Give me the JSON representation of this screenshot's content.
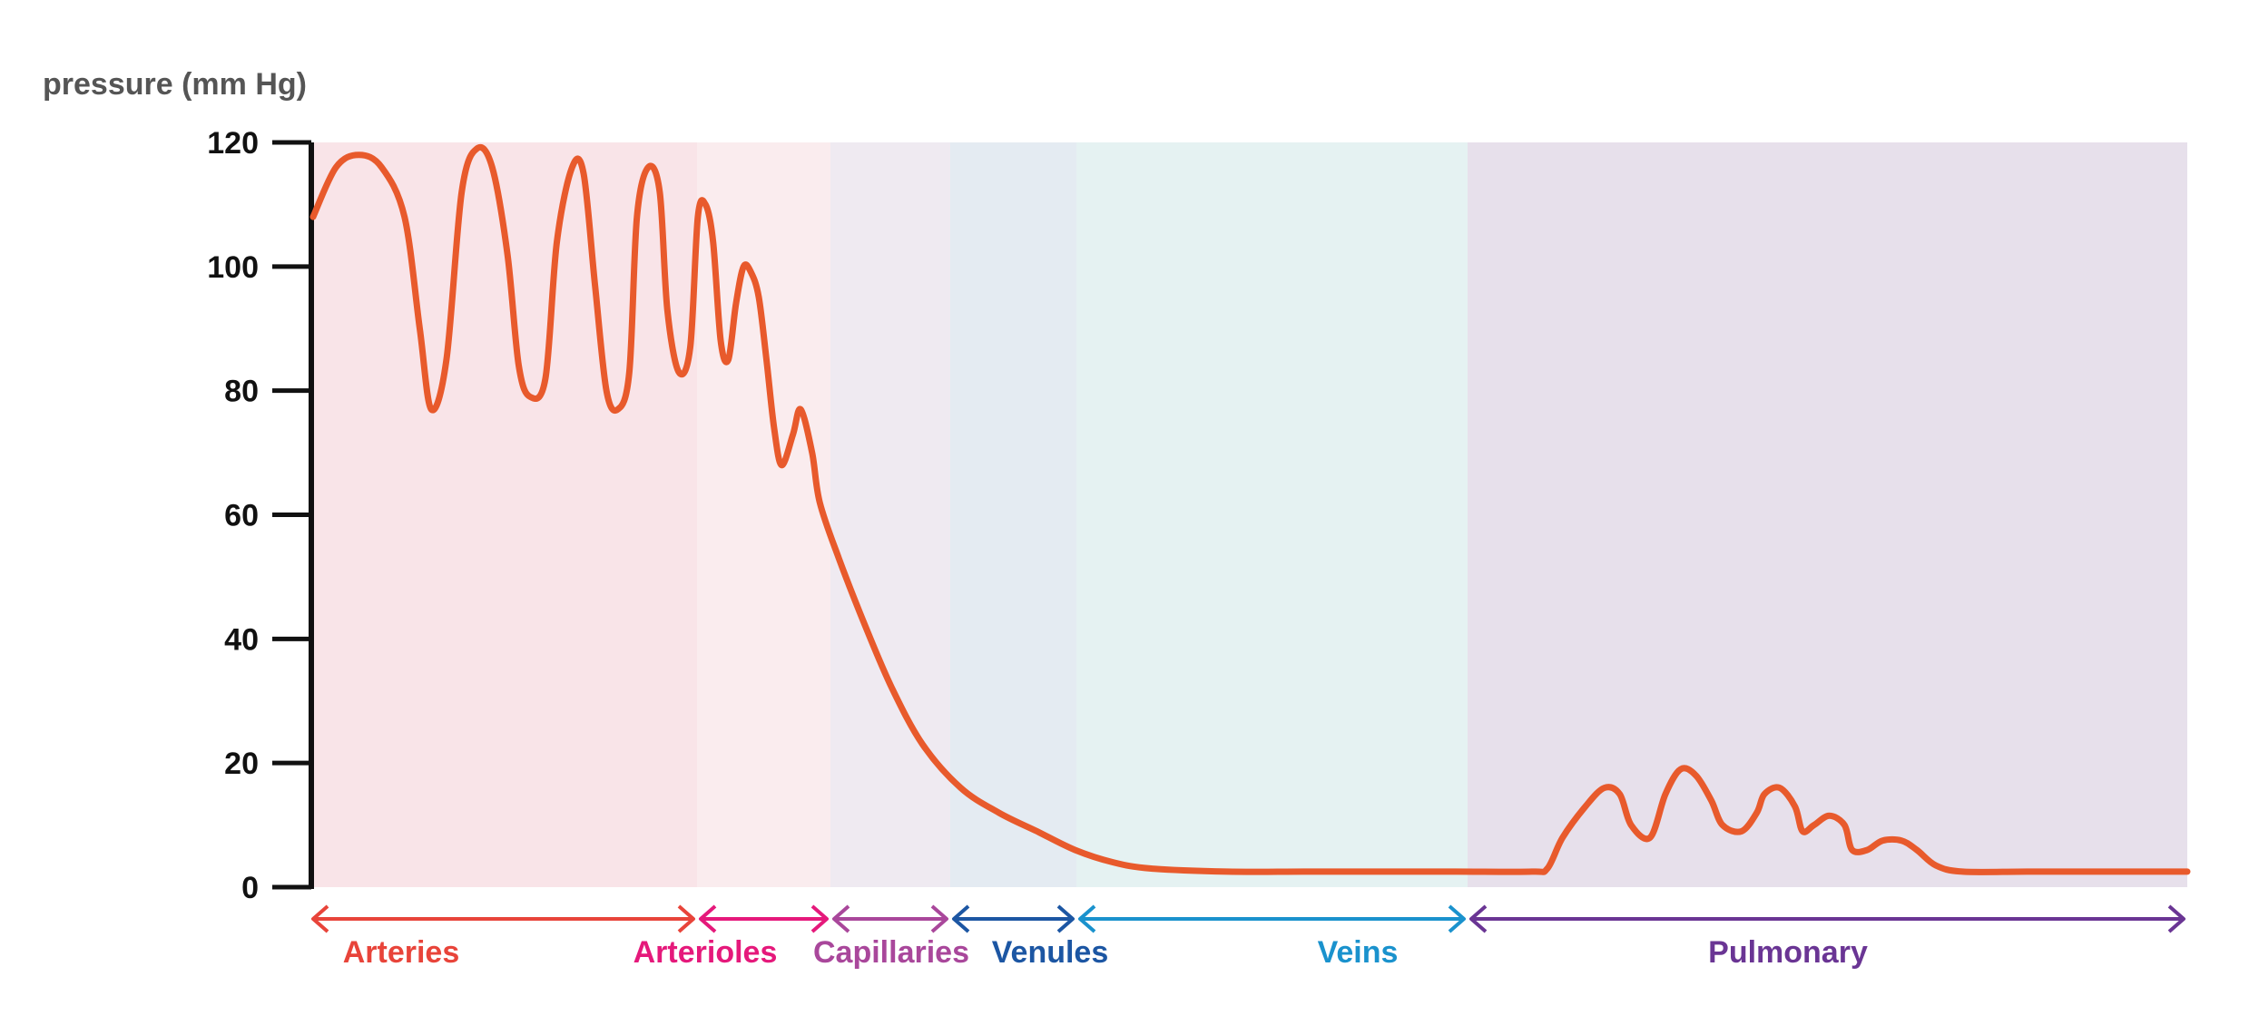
{
  "chart_data": {
    "type": "line",
    "title": "",
    "ylabel": "pressure (mm Hg)",
    "xlabel": "",
    "ylim": [
      0,
      120
    ],
    "yticks": [
      0,
      20,
      40,
      60,
      80,
      100,
      120
    ],
    "grid": false,
    "line_color": "#E85A2C",
    "regions": [
      {
        "name": "Arteries",
        "color": "#E8443A",
        "bg": "#F9E4E8"
      },
      {
        "name": "Arterioles",
        "color": "#E5197B",
        "bg": "#FAECEE"
      },
      {
        "name": "Capillaries",
        "color": "#A9479B",
        "bg": "#EFEAF1"
      },
      {
        "name": "Venules",
        "color": "#1C56A3",
        "bg": "#E4EBF2"
      },
      {
        "name": "Veins",
        "color": "#1A92CD",
        "bg": "#E5F2F2"
      },
      {
        "name": "Pulmonary",
        "color": "#6A3594",
        "bg": "#E7E0EB"
      }
    ],
    "series": [
      {
        "points": [
          [
            0.0,
            108
          ],
          [
            0.3,
            116
          ],
          [
            0.6,
            118
          ],
          [
            0.9,
            116
          ],
          [
            1.2,
            108
          ],
          [
            1.4,
            90
          ],
          [
            1.55,
            77
          ],
          [
            1.75,
            85
          ],
          [
            1.95,
            112
          ],
          [
            2.15,
            119
          ],
          [
            2.35,
            116
          ],
          [
            2.55,
            102
          ],
          [
            2.7,
            84
          ],
          [
            2.85,
            79
          ],
          [
            3.05,
            82
          ],
          [
            3.2,
            104
          ],
          [
            3.4,
            116
          ],
          [
            3.55,
            115
          ],
          [
            3.7,
            97
          ],
          [
            3.85,
            80
          ],
          [
            4.0,
            77
          ],
          [
            4.15,
            83
          ],
          [
            4.25,
            108
          ],
          [
            4.4,
            116
          ],
          [
            4.55,
            112
          ],
          [
            4.65,
            93
          ],
          [
            4.8,
            83
          ],
          [
            4.95,
            87
          ],
          [
            5.05,
            108
          ],
          [
            5.15,
            110
          ],
          [
            5.25,
            104
          ],
          [
            5.35,
            88
          ],
          [
            5.45,
            85
          ],
          [
            5.55,
            94
          ],
          [
            5.65,
            100
          ],
          [
            5.75,
            99
          ],
          [
            5.85,
            95
          ],
          [
            5.95,
            85
          ],
          [
            6.05,
            74
          ],
          [
            6.15,
            68
          ],
          [
            6.3,
            73
          ],
          [
            6.4,
            77
          ],
          [
            6.55,
            70
          ],
          [
            6.65,
            62
          ],
          [
            6.9,
            53
          ],
          [
            7.25,
            42
          ],
          [
            7.6,
            32
          ],
          [
            8.0,
            23
          ],
          [
            8.5,
            16
          ],
          [
            9.0,
            12
          ],
          [
            9.5,
            9
          ],
          [
            10.0,
            6
          ],
          [
            10.5,
            4
          ],
          [
            11.0,
            3
          ],
          [
            12.0,
            2.5
          ],
          [
            13.0,
            2.5
          ],
          [
            14.0,
            2.5
          ],
          [
            15.0,
            2.5
          ],
          [
            16.0,
            2.5
          ],
          [
            16.2,
            3
          ],
          [
            16.4,
            8
          ],
          [
            16.7,
            13
          ],
          [
            16.95,
            16
          ],
          [
            17.15,
            15
          ],
          [
            17.3,
            10
          ],
          [
            17.55,
            8
          ],
          [
            17.75,
            15
          ],
          [
            17.95,
            19
          ],
          [
            18.15,
            18
          ],
          [
            18.35,
            14
          ],
          [
            18.5,
            10
          ],
          [
            18.75,
            9
          ],
          [
            18.95,
            12
          ],
          [
            19.05,
            15
          ],
          [
            19.25,
            16
          ],
          [
            19.45,
            13
          ],
          [
            19.55,
            9
          ],
          [
            19.7,
            10
          ],
          [
            19.9,
            11.5
          ],
          [
            20.1,
            10
          ],
          [
            20.2,
            6
          ],
          [
            20.4,
            6
          ],
          [
            20.6,
            7.5
          ],
          [
            20.85,
            7.5
          ],
          [
            21.05,
            6
          ],
          [
            21.3,
            3.5
          ],
          [
            21.65,
            2.5
          ],
          [
            22.5,
            2.5
          ],
          [
            23.5,
            2.5
          ],
          [
            24.0,
            2.5
          ],
          [
            24.6,
            2.5
          ]
        ]
      }
    ]
  }
}
